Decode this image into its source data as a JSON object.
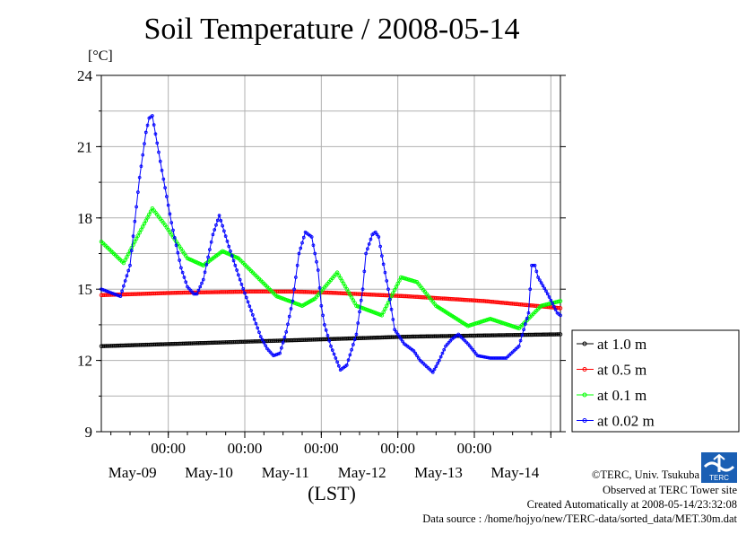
{
  "chart_data": {
    "type": "line",
    "title": "Soil Temperature / 2008-05-14",
    "yunit": "[°C]",
    "xlabel": "(LST)",
    "ylim": [
      9,
      24
    ],
    "yticks": [
      9,
      12,
      15,
      18,
      21,
      24
    ],
    "xlim": [
      0,
      144
    ],
    "xticks": [
      {
        "pos": 21,
        "label": "00:00",
        "date": "May-09"
      },
      {
        "pos": 45,
        "label": "00:00",
        "date": "May-10"
      },
      {
        "pos": 69,
        "label": "00:00",
        "date": "May-11"
      },
      {
        "pos": 93,
        "label": "00:00",
        "date": "May-12"
      },
      {
        "pos": 117,
        "label": "00:00",
        "date": "May-13"
      },
      {
        "pos": 141,
        "label": "",
        "date": "May-14"
      }
    ],
    "grid": true,
    "legend_position": "right",
    "series": [
      {
        "name": "at 1.0 m",
        "color": "#000000",
        "x": [
          0,
          24,
          48,
          72,
          96,
          120,
          144
        ],
        "y": [
          12.6,
          12.7,
          12.8,
          12.9,
          13.0,
          13.05,
          13.1
        ]
      },
      {
        "name": "at 0.5 m",
        "color": "#ff0000",
        "x": [
          0,
          24,
          48,
          60,
          72,
          96,
          120,
          144
        ],
        "y": [
          14.75,
          14.85,
          14.9,
          14.9,
          14.85,
          14.7,
          14.5,
          14.2
        ]
      },
      {
        "name": "at 0.1 m",
        "color": "#00ff00",
        "x": [
          0,
          7,
          16,
          20,
          27,
          32,
          38,
          43,
          55,
          63,
          67,
          74,
          80,
          88,
          94,
          99,
          105,
          115,
          122,
          131,
          138,
          144
        ],
        "y": [
          17.0,
          16.1,
          18.4,
          17.7,
          16.3,
          16.0,
          16.6,
          16.3,
          14.7,
          14.3,
          14.6,
          15.7,
          14.3,
          13.9,
          15.5,
          15.3,
          14.3,
          13.45,
          13.75,
          13.35,
          14.3,
          14.5
        ]
      },
      {
        "name": "at 0.02 m",
        "color": "#0000ff",
        "x": [
          0,
          4,
          6,
          9,
          12,
          14,
          15,
          16,
          19,
          22,
          25,
          27,
          29,
          30,
          32,
          35,
          37,
          40,
          44,
          50,
          52,
          54,
          56,
          58,
          60,
          62,
          64,
          66,
          68,
          69,
          70,
          72,
          75,
          76,
          77,
          80,
          82,
          83,
          85,
          86,
          87,
          88,
          90,
          92,
          95,
          98,
          100,
          104,
          106,
          108,
          110,
          112,
          115,
          118,
          122,
          127,
          131,
          134,
          135,
          136,
          137,
          140,
          143,
          144
        ],
        "y": [
          15.0,
          14.8,
          14.7,
          16.0,
          19.7,
          21.6,
          22.2,
          22.3,
          20.0,
          17.8,
          15.9,
          15.1,
          14.8,
          14.8,
          15.4,
          17.3,
          18.1,
          16.8,
          15.2,
          13.0,
          12.5,
          12.2,
          12.3,
          13.2,
          14.5,
          16.5,
          17.4,
          17.2,
          15.8,
          14.3,
          13.5,
          12.6,
          11.6,
          11.7,
          11.8,
          13.1,
          15.0,
          16.5,
          17.3,
          17.4,
          17.2,
          16.4,
          15.0,
          13.3,
          12.7,
          12.4,
          12.0,
          11.5,
          12.0,
          12.6,
          12.9,
          13.1,
          12.7,
          12.2,
          12.1,
          12.1,
          12.6,
          14.0,
          16.0,
          16.0,
          15.5,
          14.8,
          14.0,
          13.9
        ]
      }
    ]
  },
  "credits": {
    "copyright": "©TERC, Univ. Tsukuba",
    "observed": "Observed at TERC Tower site",
    "created": "Created Automatically at 2008-05-14/23:32:08",
    "source": "Data source : /home/hojyo/new/TERC-data/sorted_data/MET.30m.dat",
    "logo_text": "TERC"
  }
}
